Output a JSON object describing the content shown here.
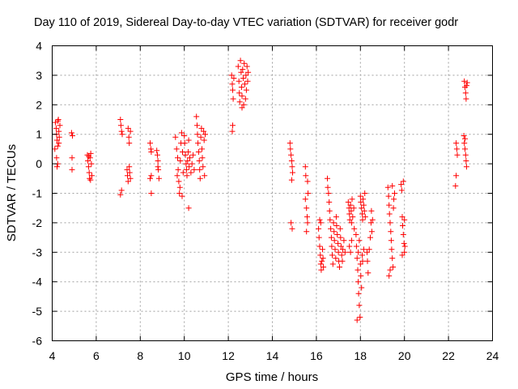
{
  "chart_data": {
    "type": "scatter",
    "title": "Day 110 of 2019, Sidereal Day-to-day VTEC variation (SDTVAR) for receiver godr",
    "xlabel": "GPS time / hours",
    "ylabel": "SDTVAR / TECUs",
    "xlim": [
      4,
      24
    ],
    "ylim": [
      -6,
      4
    ],
    "xticks": [
      4,
      6,
      8,
      10,
      12,
      14,
      16,
      18,
      20,
      22,
      24
    ],
    "yticks": [
      -6,
      -5,
      -4,
      -3,
      -2,
      -1,
      0,
      1,
      2,
      3,
      4
    ],
    "grid": true,
    "marker": "+",
    "color": "#ff0000",
    "series": [
      {
        "name": "SDTVAR",
        "points": [
          [
            4.15,
            1.4
          ],
          [
            4.18,
            1.2
          ],
          [
            4.2,
            1.0
          ],
          [
            4.22,
            0.8
          ],
          [
            4.25,
            0.6
          ],
          [
            4.28,
            1.5
          ],
          [
            4.3,
            1.1
          ],
          [
            4.32,
            0.9
          ],
          [
            4.2,
            0.2
          ],
          [
            4.22,
            -0.1
          ],
          [
            4.25,
            0.0
          ],
          [
            4.3,
            0.7
          ],
          [
            4.35,
            1.3
          ],
          [
            4.12,
            0.5
          ],
          [
            4.26,
            1.45
          ],
          [
            4.88,
            1.05
          ],
          [
            4.92,
            0.95
          ],
          [
            4.9,
            0.2
          ],
          [
            4.9,
            -0.2
          ],
          [
            5.6,
            0.3
          ],
          [
            5.62,
            0.1
          ],
          [
            5.65,
            -0.1
          ],
          [
            5.68,
            -0.3
          ],
          [
            5.7,
            -0.5
          ],
          [
            5.72,
            0.2
          ],
          [
            5.75,
            0.35
          ],
          [
            5.78,
            0.0
          ],
          [
            5.8,
            -0.4
          ],
          [
            5.66,
            0.25
          ],
          [
            5.74,
            -0.55
          ],
          [
            7.1,
            1.5
          ],
          [
            7.12,
            1.3
          ],
          [
            7.15,
            1.1
          ],
          [
            7.18,
            1.0
          ],
          [
            7.15,
            -0.9
          ],
          [
            7.1,
            -1.05
          ],
          [
            7.4,
            -0.2
          ],
          [
            7.42,
            -0.4
          ],
          [
            7.45,
            -0.6
          ],
          [
            7.5,
            -0.1
          ],
          [
            7.52,
            -0.3
          ],
          [
            7.55,
            -0.5
          ],
          [
            7.45,
            1.2
          ],
          [
            7.48,
            0.9
          ],
          [
            7.5,
            0.7
          ],
          [
            7.55,
            1.1
          ],
          [
            8.45,
            0.7
          ],
          [
            8.48,
            0.5
          ],
          [
            8.5,
            0.4
          ],
          [
            8.45,
            -0.5
          ],
          [
            8.5,
            -1.0
          ],
          [
            8.5,
            -0.4
          ],
          [
            8.75,
            0.45
          ],
          [
            8.78,
            0.3
          ],
          [
            8.8,
            0.1
          ],
          [
            8.82,
            -0.2
          ],
          [
            8.85,
            -0.5
          ],
          [
            8.8,
            -0.1
          ],
          [
            9.6,
            0.9
          ],
          [
            9.65,
            0.5
          ],
          [
            9.7,
            0.2
          ],
          [
            9.72,
            -0.2
          ],
          [
            9.75,
            -0.6
          ],
          [
            9.78,
            -1.0
          ],
          [
            9.8,
            -0.8
          ],
          [
            9.82,
            0.1
          ],
          [
            9.85,
            0.7
          ],
          [
            9.88,
            1.05
          ],
          [
            9.9,
            -1.1
          ],
          [
            9.68,
            -0.4
          ],
          [
            9.92,
            0.4
          ],
          [
            9.95,
            -0.3
          ],
          [
            10.0,
            0.95
          ],
          [
            10.02,
            0.7
          ],
          [
            10.05,
            0.3
          ],
          [
            10.08,
            0.0
          ],
          [
            10.1,
            -0.2
          ],
          [
            10.12,
            -0.4
          ],
          [
            10.15,
            0.1
          ],
          [
            10.18,
            0.4
          ],
          [
            10.2,
            0.8
          ],
          [
            10.22,
            -0.1
          ],
          [
            10.25,
            0.2
          ],
          [
            10.3,
            -0.3
          ],
          [
            10.35,
            0.0
          ],
          [
            10.4,
            0.3
          ],
          [
            10.2,
            -1.5
          ],
          [
            10.45,
            -0.2
          ],
          [
            10.55,
            1.6
          ],
          [
            10.58,
            1.3
          ],
          [
            10.6,
            1.0
          ],
          [
            10.62,
            0.7
          ],
          [
            10.65,
            0.4
          ],
          [
            10.68,
            0.1
          ],
          [
            10.7,
            -0.2
          ],
          [
            10.72,
            -0.5
          ],
          [
            10.75,
            0.9
          ],
          [
            10.78,
            1.2
          ],
          [
            10.8,
            0.5
          ],
          [
            10.82,
            0.2
          ],
          [
            10.85,
            -0.1
          ],
          [
            10.88,
            1.1
          ],
          [
            10.9,
            0.8
          ],
          [
            10.92,
            -0.4
          ],
          [
            10.95,
            1.0
          ],
          [
            12.15,
            3.0
          ],
          [
            12.18,
            2.7
          ],
          [
            12.2,
            2.5
          ],
          [
            12.22,
            2.2
          ],
          [
            12.25,
            2.9
          ],
          [
            12.2,
            1.3
          ],
          [
            12.18,
            1.1
          ],
          [
            12.45,
            3.3
          ],
          [
            12.48,
            2.8
          ],
          [
            12.5,
            2.4
          ],
          [
            12.52,
            2.1
          ],
          [
            12.55,
            3.5
          ],
          [
            12.58,
            3.1
          ],
          [
            12.6,
            2.6
          ],
          [
            12.62,
            2.3
          ],
          [
            12.65,
            3.2
          ],
          [
            12.68,
            2.9
          ],
          [
            12.7,
            2.0
          ],
          [
            12.72,
            3.4
          ],
          [
            12.75,
            2.7
          ],
          [
            12.78,
            2.2
          ],
          [
            12.8,
            3.0
          ],
          [
            12.82,
            2.5
          ],
          [
            12.85,
            3.3
          ],
          [
            12.88,
            2.8
          ],
          [
            12.9,
            3.1
          ],
          [
            12.62,
            1.9
          ],
          [
            14.8,
            0.7
          ],
          [
            14.82,
            0.5
          ],
          [
            14.85,
            0.3
          ],
          [
            14.88,
            0.1
          ],
          [
            14.9,
            -0.1
          ],
          [
            14.92,
            -0.3
          ],
          [
            14.88,
            -0.55
          ],
          [
            14.85,
            -2.0
          ],
          [
            14.9,
            -2.2
          ],
          [
            15.5,
            -0.1
          ],
          [
            15.52,
            -0.4
          ],
          [
            15.5,
            -1.2
          ],
          [
            15.55,
            -1.5
          ],
          [
            15.58,
            -1.8
          ],
          [
            15.6,
            -2.0
          ],
          [
            15.55,
            -2.3
          ],
          [
            15.62,
            -1.0
          ],
          [
            15.6,
            -0.6
          ],
          [
            16.1,
            -2.2
          ],
          [
            16.12,
            -2.5
          ],
          [
            16.15,
            -2.8
          ],
          [
            16.18,
            -3.1
          ],
          [
            16.2,
            -3.4
          ],
          [
            16.22,
            -3.6
          ],
          [
            16.25,
            -3.3
          ],
          [
            16.28,
            -2.9
          ],
          [
            16.3,
            -3.2
          ],
          [
            16.15,
            -1.9
          ],
          [
            16.2,
            -2.0
          ],
          [
            16.32,
            -3.5
          ],
          [
            16.5,
            -0.5
          ],
          [
            16.52,
            -0.8
          ],
          [
            16.55,
            -1.0
          ],
          [
            16.58,
            -1.3
          ],
          [
            16.6,
            -1.6
          ],
          [
            16.62,
            -1.9
          ],
          [
            16.65,
            -2.2
          ],
          [
            16.68,
            -2.5
          ],
          [
            16.7,
            -2.8
          ],
          [
            16.72,
            -3.1
          ],
          [
            16.75,
            -3.4
          ],
          [
            16.78,
            -2.0
          ],
          [
            16.8,
            -2.3
          ],
          [
            16.82,
            -2.6
          ],
          [
            16.85,
            -2.9
          ],
          [
            16.88,
            -3.2
          ],
          [
            16.9,
            -1.8
          ],
          [
            16.92,
            -2.1
          ],
          [
            16.95,
            -2.4
          ],
          [
            16.98,
            -2.7
          ],
          [
            17.0,
            -3.0
          ],
          [
            17.02,
            -3.3
          ],
          [
            17.05,
            -3.5
          ],
          [
            17.08,
            -2.2
          ],
          [
            17.1,
            -2.5
          ],
          [
            17.12,
            -2.8
          ],
          [
            17.15,
            -3.1
          ],
          [
            17.18,
            -3.3
          ],
          [
            17.2,
            -2.9
          ],
          [
            17.25,
            -2.6
          ],
          [
            17.3,
            -3.0
          ],
          [
            17.45,
            -1.3
          ],
          [
            17.48,
            -1.5
          ],
          [
            17.5,
            -1.7
          ],
          [
            17.52,
            -1.9
          ],
          [
            17.55,
            -1.4
          ],
          [
            17.58,
            -1.6
          ],
          [
            17.6,
            -2.0
          ],
          [
            17.62,
            -1.2
          ],
          [
            17.65,
            -1.8
          ],
          [
            17.5,
            -2.8
          ],
          [
            17.55,
            -3.0
          ],
          [
            17.6,
            -2.6
          ],
          [
            17.7,
            -1.5
          ],
          [
            17.72,
            -2.2
          ],
          [
            17.8,
            -2.4
          ],
          [
            17.82,
            -2.8
          ],
          [
            17.85,
            -3.2
          ],
          [
            17.88,
            -3.6
          ],
          [
            17.9,
            -4.0
          ],
          [
            17.92,
            -4.4
          ],
          [
            17.95,
            -4.8
          ],
          [
            17.98,
            -5.2
          ],
          [
            17.9,
            -3.0
          ],
          [
            17.95,
            -2.6
          ],
          [
            18.0,
            -3.4
          ],
          [
            18.02,
            -3.8
          ],
          [
            18.05,
            -4.2
          ],
          [
            18.08,
            -3.1
          ],
          [
            17.85,
            -5.3
          ],
          [
            18.1,
            -3.3
          ],
          [
            18.15,
            -2.9
          ],
          [
            18.0,
            -1.1
          ],
          [
            18.02,
            -1.3
          ],
          [
            18.05,
            -1.5
          ],
          [
            18.08,
            -1.7
          ],
          [
            18.1,
            -1.9
          ],
          [
            18.12,
            -1.2
          ],
          [
            18.15,
            -1.4
          ],
          [
            18.18,
            -1.6
          ],
          [
            18.2,
            -1.0
          ],
          [
            18.22,
            -1.8
          ],
          [
            18.3,
            -3.0
          ],
          [
            18.32,
            -3.3
          ],
          [
            18.35,
            -3.7
          ],
          [
            18.4,
            -2.9
          ],
          [
            18.45,
            -2.5
          ],
          [
            18.48,
            -2.0
          ],
          [
            18.5,
            -1.6
          ],
          [
            18.55,
            -1.9
          ],
          [
            18.52,
            -2.3
          ],
          [
            19.25,
            -0.8
          ],
          [
            19.28,
            -1.1
          ],
          [
            19.3,
            -1.4
          ],
          [
            19.32,
            -1.7
          ],
          [
            19.35,
            -2.0
          ],
          [
            19.38,
            -2.3
          ],
          [
            19.4,
            -2.6
          ],
          [
            19.42,
            -2.9
          ],
          [
            19.45,
            -3.2
          ],
          [
            19.48,
            -3.5
          ],
          [
            19.3,
            -3.8
          ],
          [
            19.5,
            -1.5
          ],
          [
            19.52,
            -1.2
          ],
          [
            19.55,
            -1.0
          ],
          [
            19.45,
            -0.75
          ],
          [
            19.35,
            -3.6
          ],
          [
            19.85,
            -0.7
          ],
          [
            19.88,
            -0.9
          ],
          [
            19.9,
            -1.8
          ],
          [
            19.92,
            -2.1
          ],
          [
            19.95,
            -2.4
          ],
          [
            19.98,
            -2.7
          ],
          [
            20.0,
            -3.0
          ],
          [
            20.02,
            -2.8
          ],
          [
            19.9,
            -3.1
          ],
          [
            19.95,
            -0.6
          ],
          [
            20.0,
            -1.9
          ],
          [
            22.35,
            0.7
          ],
          [
            22.38,
            0.5
          ],
          [
            22.4,
            0.3
          ],
          [
            22.35,
            -0.4
          ],
          [
            22.32,
            -0.75
          ],
          [
            22.7,
            0.95
          ],
          [
            22.72,
            0.7
          ],
          [
            22.75,
            0.5
          ],
          [
            22.78,
            0.3
          ],
          [
            22.8,
            0.1
          ],
          [
            22.82,
            -0.1
          ],
          [
            22.75,
            0.85
          ],
          [
            22.72,
            2.8
          ],
          [
            22.75,
            2.6
          ],
          [
            22.78,
            2.4
          ],
          [
            22.8,
            2.2
          ],
          [
            22.82,
            2.65
          ],
          [
            22.85,
            2.75
          ]
        ]
      }
    ]
  }
}
